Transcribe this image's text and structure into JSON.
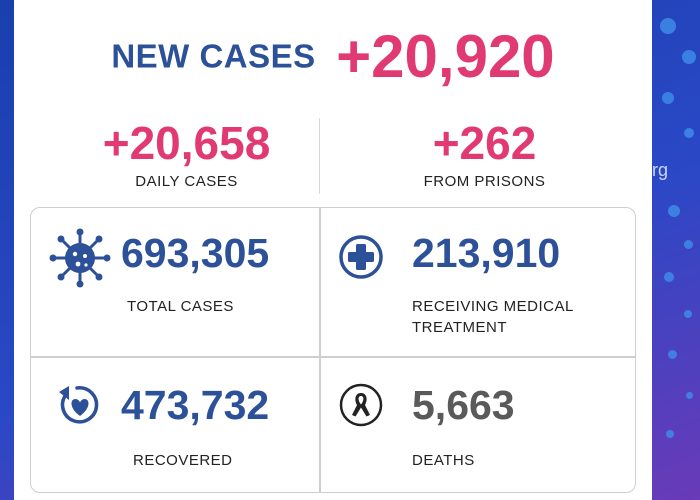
{
  "headline": {
    "label": "NEW CASES",
    "value": "+20,920"
  },
  "breakdown": {
    "daily": {
      "value": "+20,658",
      "label": "DAILY CASES"
    },
    "prisons": {
      "value": "+262",
      "label": "FROM PRISONS"
    }
  },
  "stats": {
    "total": {
      "value": "693,305",
      "label": "TOTAL CASES",
      "icon": "virus-icon"
    },
    "treatment": {
      "value": "213,910",
      "label_line1": "RECEIVING MEDICAL",
      "label_line2": "TREATMENT",
      "icon": "medical-cross-icon"
    },
    "recovered": {
      "value": "473,732",
      "label": "RECOVERED",
      "icon": "heart-recovery-icon"
    },
    "deaths": {
      "value": "5,663",
      "label": "DEATHS",
      "icon": "ribbon-icon"
    }
  },
  "watermark": "rg",
  "colors": {
    "accent_pink": "#e13a73",
    "accent_blue": "#2d5198",
    "background": "#2a48c6"
  }
}
